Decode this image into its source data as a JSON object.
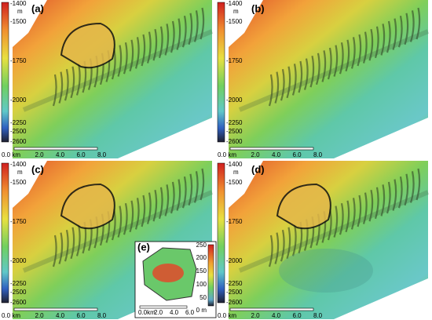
{
  "panels": [
    {
      "label": "(a)",
      "colorbar": {
        "unit": "m",
        "ticks": [
          "-1400",
          "-1500",
          "-1750",
          "-2000",
          "-2250",
          "-2500",
          "-2600"
        ]
      },
      "scale": [
        "0.0 km",
        "2.0",
        "4.0",
        "6.0",
        "8.0"
      ]
    },
    {
      "label": "(b)",
      "colorbar": {
        "unit": "m",
        "ticks": [
          "-1400",
          "-1500",
          "-1750",
          "-2000",
          "-2250",
          "-2500",
          "-2600"
        ]
      },
      "scale": [
        "0.0 km",
        "2.0",
        "4.0",
        "6.0",
        "8.0"
      ]
    },
    {
      "label": "(c)",
      "colorbar": {
        "unit": "m",
        "ticks": [
          "-1400",
          "-1500",
          "-1750",
          "-2000",
          "-2250",
          "-2500",
          "-2600"
        ]
      },
      "scale": [
        "0.0 km",
        "2.0",
        "4.0",
        "6.0",
        "8.0"
      ]
    },
    {
      "label": "(d)",
      "colorbar": {
        "unit": "m",
        "ticks": [
          "-1400",
          "-1500",
          "-1750",
          "-2000",
          "-2250",
          "-2500",
          "-2600"
        ]
      },
      "scale": [
        "0.0 km",
        "2.0",
        "4.0",
        "6.0",
        "8.0"
      ]
    }
  ],
  "inset": {
    "label": "(e)",
    "colorbar": {
      "ticks": [
        "250",
        "200",
        "150",
        "100",
        "50",
        "0 m"
      ]
    },
    "scale": [
      "0.0km",
      "2.0",
      "4.0",
      "6.0"
    ]
  }
}
